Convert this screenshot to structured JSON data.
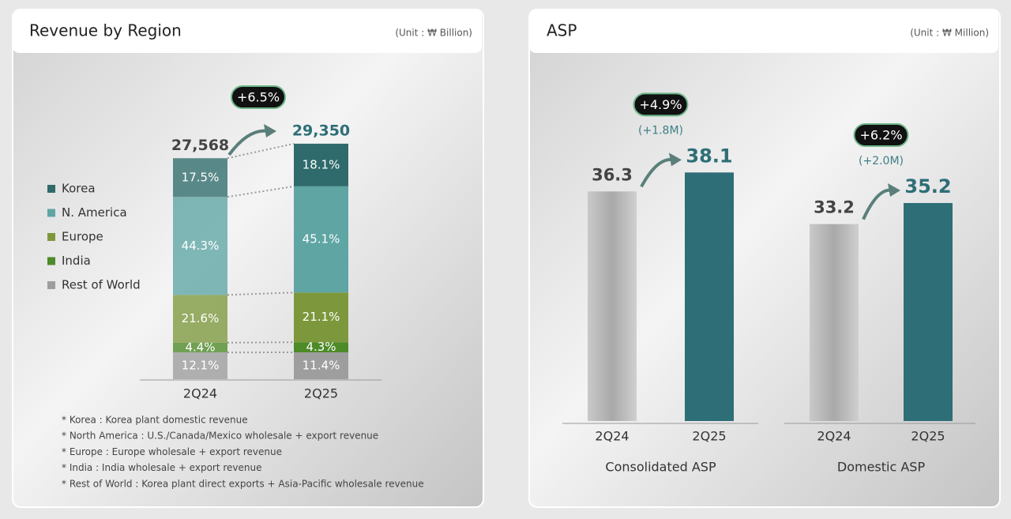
{
  "chart_data": [
    {
      "type": "stacked_bar",
      "title": "Revenue by Region",
      "unit": "(Unit : ₩ Billion)",
      "categories": [
        "2Q24",
        "2Q25"
      ],
      "totals": {
        "values": [
          27568,
          29350
        ],
        "value_labels": [
          "27,568",
          "29,350"
        ]
      },
      "growth": "+6.5%",
      "series": [
        {
          "name": "Korea",
          "color": "#2f6b6c",
          "values": [
            17.5,
            18.1
          ],
          "value_labels": [
            "17.5%",
            "18.1%"
          ]
        },
        {
          "name": "N. America",
          "color": "#5ea5a4",
          "values": [
            44.3,
            45.1
          ],
          "value_labels": [
            "44.3%",
            "45.1%"
          ]
        },
        {
          "name": "Europe",
          "color": "#7d983c",
          "values": [
            21.6,
            21.1
          ],
          "value_labels": [
            "21.6%",
            "21.1%"
          ]
        },
        {
          "name": "India",
          "color": "#4d8a28",
          "values": [
            4.4,
            4.3
          ],
          "value_labels": [
            "4.4%",
            "4.3%"
          ]
        },
        {
          "name": "Rest of World",
          "color": "#9e9e9e",
          "values": [
            12.1,
            11.4
          ],
          "value_labels": [
            "12.1%",
            "11.4%"
          ]
        }
      ],
      "footnotes": [
        "* Korea : Korea plant domestic revenue",
        "* North America : U.S./Canada/Mexico wholesale + export revenue",
        "* Europe : Europe wholesale + export revenue",
        "* India : India wholesale + export revenue",
        "* Rest of World : Korea plant direct exports + Asia-Pacific wholesale revenue"
      ]
    },
    {
      "type": "grouped_bar",
      "title": "ASP",
      "unit": "(Unit : ₩ Million)",
      "categories": [
        "Consolidated ASP",
        "Domestic ASP"
      ],
      "ylim": [
        14.5,
        40
      ],
      "series": [
        {
          "name": "2Q24",
          "color": "#b4b4b4",
          "values": [
            36.3,
            33.2
          ]
        },
        {
          "name": "2Q25",
          "color": "#2e6e77",
          "values": [
            38.1,
            35.2
          ]
        }
      ],
      "annotations": [
        {
          "change": "+4.9%",
          "difference": "(+1.8M)"
        },
        {
          "change": "+6.2%",
          "difference": "(+2.0M)"
        }
      ]
    }
  ]
}
